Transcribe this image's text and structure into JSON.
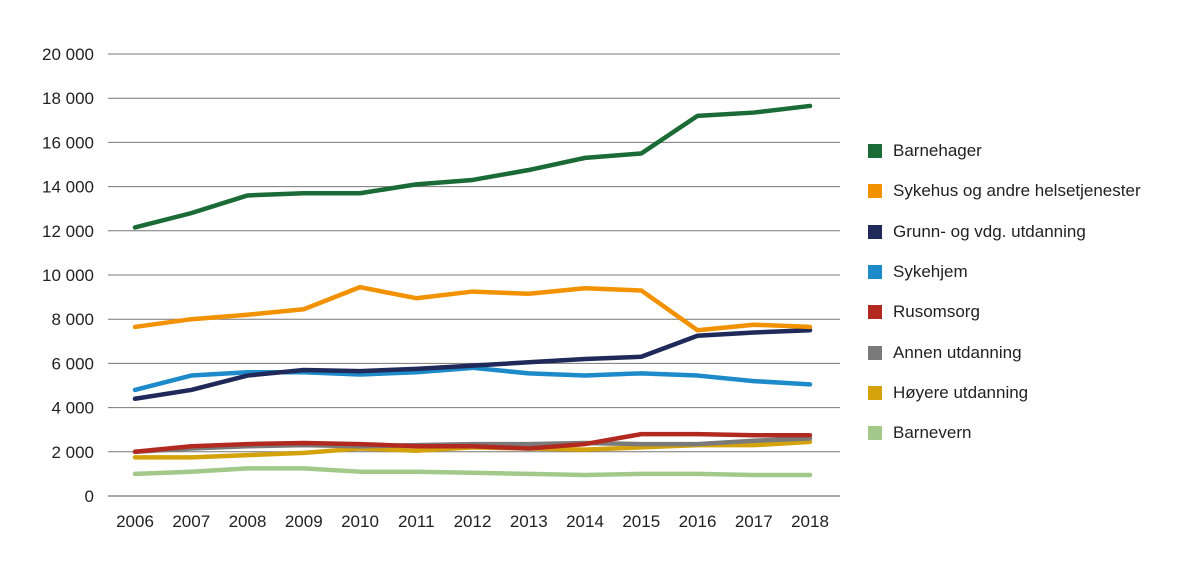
{
  "chart_data": {
    "type": "line",
    "title": "",
    "xlabel": "",
    "ylabel": "",
    "x": [
      2006,
      2007,
      2008,
      2009,
      2010,
      2011,
      2012,
      2013,
      2014,
      2015,
      2016,
      2017,
      2018
    ],
    "ylim": [
      0,
      20000
    ],
    "yticks": [
      0,
      2000,
      4000,
      6000,
      8000,
      10000,
      12000,
      14000,
      16000,
      18000,
      20000
    ],
    "ytick_labels": [
      "0",
      "2 000",
      "4 000",
      "6 000",
      "8 000",
      "10 000",
      "12 000",
      "14 000",
      "16 000",
      "18 000",
      "20 000"
    ],
    "grid": "horizontal",
    "legend_position": "right",
    "series": [
      {
        "name": "Barnehager",
        "color": "#1a6b35",
        "values": [
          12150,
          12800,
          13600,
          13700,
          13700,
          14100,
          14300,
          14750,
          15300,
          15500,
          17200,
          17350,
          17650
        ]
      },
      {
        "name": "Sykehus og andre helsetjenester",
        "color": "#f39200",
        "values": [
          7650,
          8000,
          8200,
          8450,
          9450,
          8950,
          9250,
          9150,
          9400,
          9300,
          7500,
          7750,
          7650
        ]
      },
      {
        "name": "Grunn- og vdg. utdanning",
        "color": "#1f2a5a",
        "values": [
          4400,
          4800,
          5450,
          5700,
          5650,
          5750,
          5900,
          6050,
          6200,
          6300,
          7250,
          7400,
          7500
        ]
      },
      {
        "name": "Sykehjem",
        "color": "#1d8ac9",
        "values": [
          4800,
          5450,
          5600,
          5600,
          5500,
          5600,
          5800,
          5550,
          5450,
          5550,
          5450,
          5200,
          5050
        ]
      },
      {
        "name": "Rusomsorg",
        "color": "#b22a1f",
        "values": [
          2000,
          2250,
          2350,
          2400,
          2350,
          2250,
          2250,
          2150,
          2350,
          2800,
          2800,
          2750,
          2750
        ]
      },
      {
        "name": "Annen utdanning",
        "color": "#7a7a7a",
        "values": [
          2000,
          2150,
          2250,
          2300,
          2250,
          2300,
          2350,
          2350,
          2400,
          2350,
          2350,
          2500,
          2600
        ]
      },
      {
        "name": "Høyere utdanning",
        "color": "#d4a20a",
        "values": [
          1750,
          1750,
          1850,
          1950,
          2150,
          2050,
          2200,
          2150,
          2100,
          2200,
          2300,
          2300,
          2450
        ]
      },
      {
        "name": "Barnevern",
        "color": "#a3c98a",
        "values": [
          1000,
          1100,
          1250,
          1250,
          1100,
          1100,
          1050,
          1000,
          950,
          1000,
          1000,
          950,
          950
        ]
      }
    ]
  }
}
